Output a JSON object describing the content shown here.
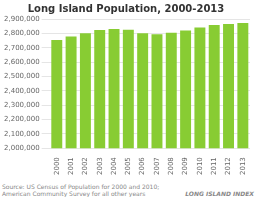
{
  "chart_data": {
    "type": "bar",
    "title": "Long Island Population, 2000-2013",
    "categories": [
      "2000",
      "2001",
      "2002",
      "2003",
      "2004",
      "2005",
      "2006",
      "2007",
      "2008",
      "2009",
      "2010",
      "2011",
      "2012",
      "2013"
    ],
    "values": [
      2753913,
      2778654,
      2800000,
      2823000,
      2830000,
      2825000,
      2800000,
      2793000,
      2805000,
      2820000,
      2840000,
      2858000,
      2865000,
      2872000
    ],
    "color": "#88cc33",
    "ylim": [
      2000000,
      2900000
    ],
    "yticks": [
      {
        "value": 2000000,
        "label": "2,000,000"
      },
      {
        "value": 2100000,
        "label": "2,100,000"
      },
      {
        "value": 2200000,
        "label": "2,200,000"
      },
      {
        "value": 2300000,
        "label": "2,300,000"
      },
      {
        "value": 2400000,
        "label": "2,400,000"
      },
      {
        "value": 2500000,
        "label": "2,500,000"
      },
      {
        "value": 2600000,
        "label": "2,600,000"
      },
      {
        "value": 2700000,
        "label": "2,700,000"
      },
      {
        "value": 2800000,
        "label": "2,800,000"
      },
      {
        "value": 2900000,
        "label": "2,900,000"
      }
    ],
    "grid": true,
    "annotations": [
      "Source: US Census of Population for 2000 and 2010; American Community Survey for all other years",
      "LONG ISLAND INDEX"
    ]
  }
}
